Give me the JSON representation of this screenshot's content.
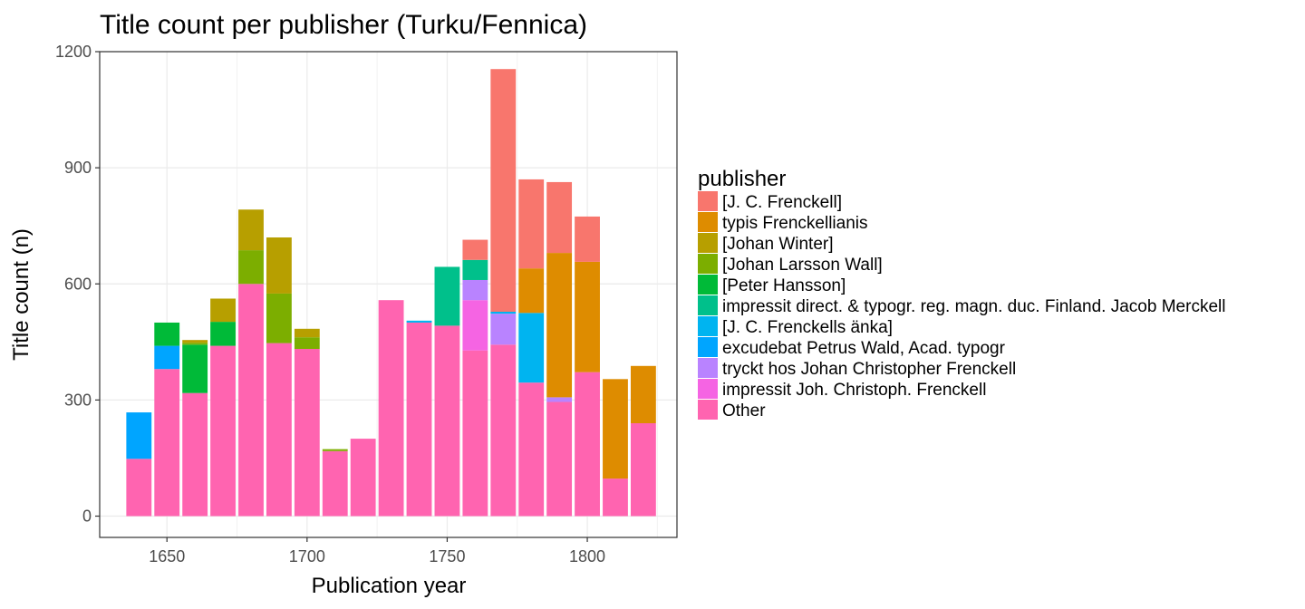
{
  "chart_data": {
    "type": "bar",
    "stacked": true,
    "title": "Title count per publisher (Turku/Fennica)",
    "xlabel": "Publication year",
    "ylabel": "Title count (n)",
    "xlim": [
      1626,
      1832
    ],
    "ylim": [
      -55,
      1200
    ],
    "x_ticks": [
      1650,
      1700,
      1750,
      1800
    ],
    "y_ticks": [
      0,
      300,
      600,
      900,
      1200
    ],
    "grid": true,
    "bin_width": 10,
    "legend": {
      "title": "publisher",
      "position": "right",
      "entries": [
        {
          "name": "[J. C. Frenckell]",
          "color": "#F8766D"
        },
        {
          "name": "typis Frenckellianis",
          "color": "#DE8C00"
        },
        {
          "name": "[Johan Winter]",
          "color": "#B79F00"
        },
        {
          "name": "[Johan Larsson Wall]",
          "color": "#7CAE00"
        },
        {
          "name": "[Peter Hansson]",
          "color": "#00BA38"
        },
        {
          "name": "impressit direct. & typogr. reg. magn. duc. Finland. Jacob Merckell",
          "color": "#00C08B"
        },
        {
          "name": "[J. C. Frenckells änka]",
          "color": "#00B4F0"
        },
        {
          "name": "excudebat Petrus Wald, Acad. typogr",
          "color": "#00A5FF"
        },
        {
          "name": "tryckt hos Johan Christopher Frenckell",
          "color": "#B983FF"
        },
        {
          "name": "impressit Joh. Christoph. Frenckell",
          "color": "#F564E3"
        },
        {
          "name": "Other",
          "color": "#FF64B0"
        }
      ]
    },
    "categories": [
      1640,
      1650,
      1660,
      1670,
      1680,
      1690,
      1700,
      1710,
      1720,
      1730,
      1740,
      1750,
      1760,
      1770,
      1780,
      1790,
      1800,
      1810,
      1820
    ],
    "series": [
      {
        "name": "Other",
        "values": [
          148,
          380,
          318,
          440,
          600,
          447,
          432,
          168,
          200,
          558,
          500,
          492,
          428,
          443,
          345,
          295,
          372,
          97,
          240
        ]
      },
      {
        "name": "impressit Joh. Christoph. Frenckell",
        "values": [
          0,
          0,
          0,
          0,
          0,
          0,
          0,
          0,
          0,
          0,
          0,
          0,
          130,
          0,
          0,
          0,
          0,
          0,
          0
        ]
      },
      {
        "name": "tryckt hos Johan Christopher Frenckell",
        "values": [
          0,
          0,
          0,
          0,
          0,
          0,
          0,
          0,
          0,
          0,
          0,
          0,
          52,
          80,
          0,
          12,
          0,
          0,
          0
        ]
      },
      {
        "name": "excudebat Petrus Wald, Acad. typogr",
        "values": [
          120,
          60,
          0,
          0,
          0,
          0,
          0,
          0,
          0,
          0,
          0,
          0,
          0,
          0,
          0,
          0,
          0,
          0,
          0
        ]
      },
      {
        "name": "[J. C. Frenckells änka]",
        "values": [
          0,
          0,
          0,
          0,
          0,
          0,
          0,
          0,
          0,
          0,
          5,
          0,
          0,
          5,
          180,
          0,
          0,
          0,
          0
        ]
      },
      {
        "name": "impressit direct. & typogr. reg. magn. duc. Finland. Jacob Merckell",
        "values": [
          0,
          0,
          0,
          0,
          0,
          0,
          0,
          0,
          0,
          0,
          0,
          152,
          52,
          0,
          0,
          0,
          0,
          0,
          0
        ]
      },
      {
        "name": "[Peter Hansson]",
        "values": [
          0,
          60,
          125,
          62,
          0,
          0,
          0,
          0,
          0,
          0,
          0,
          0,
          0,
          0,
          0,
          0,
          0,
          0,
          0
        ]
      },
      {
        "name": "[Johan Larsson Wall]",
        "values": [
          0,
          0,
          5,
          0,
          87,
          128,
          30,
          5,
          0,
          0,
          0,
          0,
          0,
          0,
          0,
          0,
          0,
          0,
          0
        ]
      },
      {
        "name": "[Johan Winter]",
        "values": [
          0,
          0,
          7,
          60,
          105,
          145,
          22,
          0,
          0,
          0,
          0,
          0,
          0,
          0,
          0,
          0,
          0,
          0,
          0
        ]
      },
      {
        "name": "typis Frenckellianis",
        "values": [
          0,
          0,
          0,
          0,
          0,
          0,
          0,
          0,
          0,
          0,
          0,
          0,
          0,
          0,
          115,
          373,
          285,
          257,
          148
        ]
      },
      {
        "name": "[J. C. Frenckell]",
        "values": [
          0,
          0,
          0,
          0,
          0,
          0,
          0,
          0,
          0,
          0,
          0,
          0,
          52,
          627,
          230,
          183,
          117,
          0,
          0
        ]
      }
    ]
  }
}
